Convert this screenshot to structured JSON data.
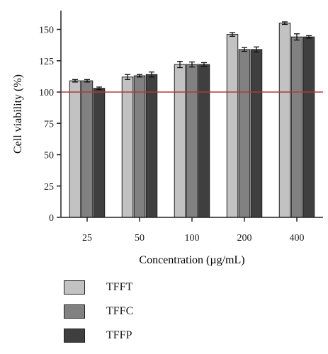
{
  "chart_data": {
    "type": "bar",
    "xlabel": "Concentration (µg/mL)",
    "ylabel": "Cell viability (%)",
    "ylim": [
      0,
      165
    ],
    "yticks": [
      0,
      25,
      50,
      75,
      100,
      125,
      150
    ],
    "reference_line": 100,
    "reference_color": "#b03a3a",
    "categories": [
      "25",
      "50",
      "100",
      "200",
      "400"
    ],
    "series": [
      {
        "name": "TFFT",
        "color": "#c2c2c2",
        "values": [
          109,
          112,
          122,
          146,
          155
        ],
        "errors": [
          1,
          2,
          2.5,
          1.5,
          1
        ]
      },
      {
        "name": "TFFC",
        "color": "#818181",
        "values": [
          109,
          113,
          122,
          134,
          144
        ],
        "errors": [
          1,
          1,
          2,
          1.5,
          2.5
        ]
      },
      {
        "name": "TFFP",
        "color": "#3f3f3f",
        "values": [
          103,
          114,
          122,
          134,
          144
        ],
        "errors": [
          1,
          2,
          1.5,
          2,
          1
        ]
      }
    ],
    "legend": "below"
  }
}
